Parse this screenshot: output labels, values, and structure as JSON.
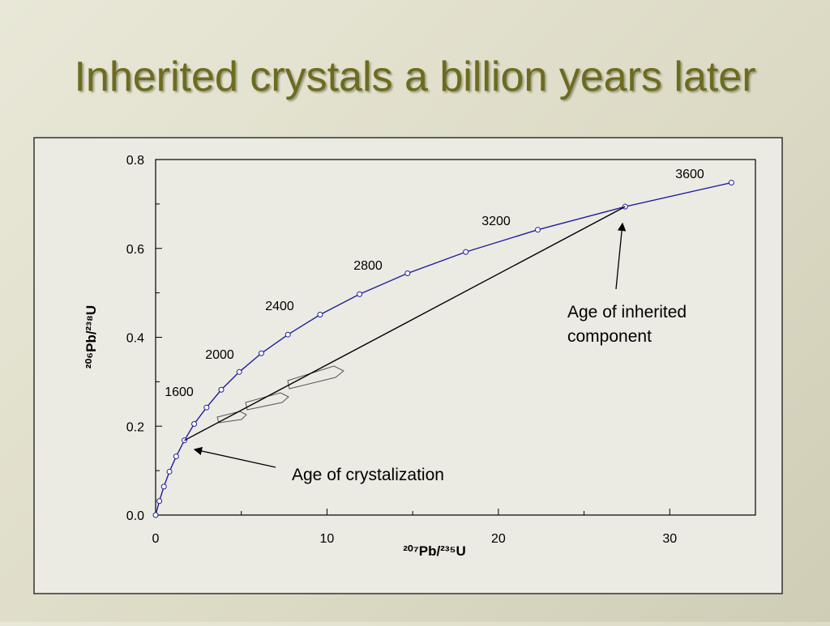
{
  "title": "Inherited crystals a billion years later",
  "chart_data": {
    "type": "line",
    "xlabel": "²⁰⁷Pb/²³⁵U",
    "ylabel": "²⁰⁶Pb/²³⁸U",
    "xlim": [
      0,
      35
    ],
    "ylim": [
      0,
      0.8
    ],
    "xticks": [
      0,
      10,
      20,
      30
    ],
    "xminor": [
      5,
      15,
      25
    ],
    "yticks": [
      {
        "value": 0,
        "label": "0.0"
      },
      0.2,
      0.4,
      0.6,
      0.8
    ],
    "yminor": [
      0.1,
      0.3,
      0.5,
      0.7
    ],
    "series": [
      {
        "color": "#1f1f9e",
        "markers": true,
        "x": [
          0,
          0.218,
          0.483,
          0.805,
          1.2,
          1.68,
          2.25,
          2.97,
          3.83,
          4.88,
          6.17,
          7.72,
          9.6,
          11.9,
          14.7,
          18.1,
          22.3,
          27.4,
          33.6
        ],
        "values": [
          0,
          0.0315,
          0.064,
          0.0976,
          0.132,
          0.168,
          0.205,
          0.242,
          0.282,
          0.322,
          0.364,
          0.406,
          0.451,
          0.497,
          0.544,
          0.592,
          0.642,
          0.694,
          0.748
        ]
      },
      {
        "color": "#000000",
        "markers": false,
        "x": [
          1.68,
          27.4
        ],
        "values": [
          0.168,
          0.694
        ]
      }
    ],
    "age_labels": [
      "1600",
      "2000",
      "2400",
      "2800",
      "3200",
      "3600"
    ],
    "annotations": [
      "Age of inherited",
      "component",
      "Age of crystalization"
    ]
  }
}
